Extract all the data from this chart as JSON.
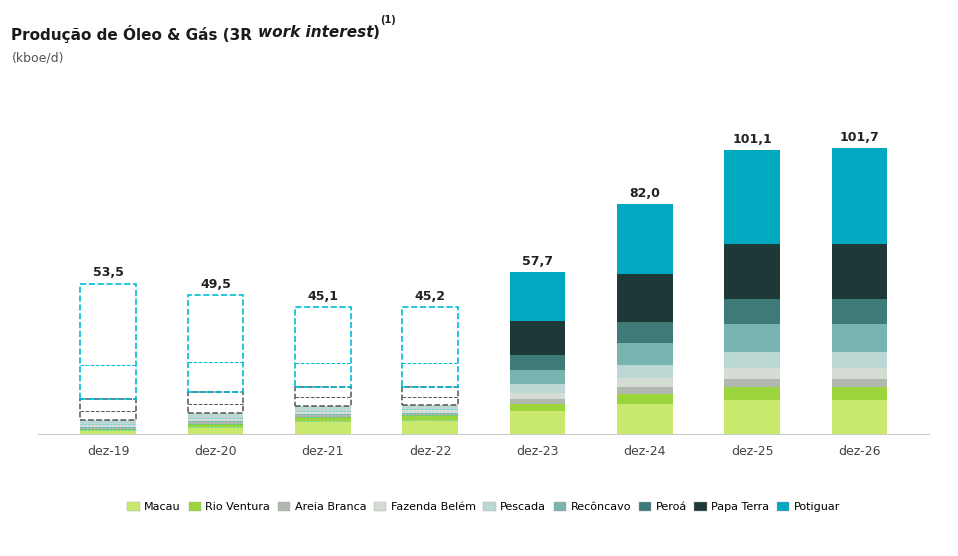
{
  "categories": [
    "dez-19",
    "dez-20",
    "dez-21",
    "dez-22",
    "dez-23",
    "dez-24",
    "dez-25",
    "dez-26"
  ],
  "totals": [
    53.5,
    49.5,
    45.1,
    45.2,
    57.7,
    82.0,
    101.1,
    101.7
  ],
  "segment_names": [
    "Macau",
    "Rio Ventura",
    "Areia Branca",
    "Fazenda Belém",
    "Pescada",
    "Recôncavo",
    "Peroá",
    "Papa Terra",
    "Potiguar"
  ],
  "segments": {
    "Macau": [
      1.2,
      2.5,
      4.5,
      5.0,
      8.0,
      10.5,
      12.0,
      12.0
    ],
    "Rio Ventura": [
      0.5,
      1.0,
      1.5,
      1.5,
      2.5,
      3.5,
      4.5,
      4.5
    ],
    "Areia Branca": [
      0.8,
      1.0,
      1.0,
      1.0,
      1.8,
      2.5,
      3.0,
      3.0
    ],
    "Fazenda Belém": [
      1.0,
      1.2,
      1.2,
      1.2,
      2.2,
      3.2,
      3.8,
      3.8
    ],
    "Pescada": [
      1.5,
      1.8,
      1.8,
      1.5,
      3.2,
      4.8,
      5.8,
      5.8
    ],
    "Recôncavo": [
      3.0,
      3.0,
      3.0,
      3.0,
      5.0,
      8.0,
      10.0,
      10.1
    ],
    "Peroá": [
      4.5,
      4.5,
      3.5,
      3.5,
      5.5,
      7.5,
      9.0,
      9.0
    ],
    "Papa Terra": [
      12.0,
      10.5,
      8.6,
      8.5,
      12.0,
      17.0,
      19.5,
      19.5
    ],
    "Potiguar": [
      29.0,
      24.0,
      20.0,
      20.0,
      17.5,
      25.0,
      33.5,
      34.0
    ]
  },
  "colors": {
    "Macau": "#c8e96e",
    "Rio Ventura": "#9cd43c",
    "Areia Branca": "#b0b8b0",
    "Fazenda Belém": "#d4dcd4",
    "Pescada": "#bcd8d4",
    "Recôncavo": "#78b4b0",
    "Peroá": "#3d7a78",
    "Papa Terra": "#1e3838",
    "Potiguar": "#00a8c0"
  },
  "dashed_bars": [
    0,
    1,
    2,
    3
  ],
  "dashed_color_cyan": "#00bcd4",
  "dashed_color_black": "#555555",
  "background_color": "#ffffff",
  "ylim": [
    0,
    115
  ],
  "bar_width": 0.52,
  "title_bold1": "Produção de Óleo & Gás (3R ",
  "title_italic": "work interest",
  "title_bold2": ")",
  "title_super": "(1)",
  "subtitle": "(kboe/d)"
}
